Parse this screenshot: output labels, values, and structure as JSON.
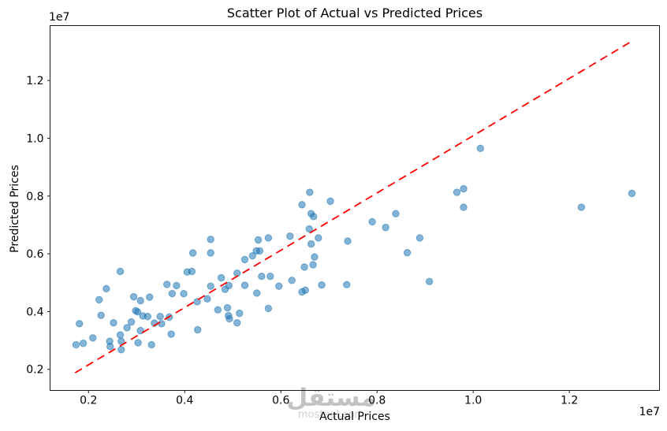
{
  "figure": {
    "title": "Scatter Plot of Actual vs Predicted Prices",
    "xlabel": "Actual Prices",
    "ylabel": "Predicted Prices",
    "x_offset_text": "1e7",
    "y_offset_text": "1e7"
  },
  "watermark": {
    "logo_text": "مستقل",
    "domain_text": "mostaql.com"
  },
  "colors": {
    "marker": "#1f77b4",
    "reference_line": "#ff0000",
    "spine": "#1a1a1a",
    "tick_label": "#000000",
    "watermark": "#c3c3c3"
  },
  "chart_data": {
    "type": "scatter",
    "title": "Scatter Plot of Actual vs Predicted Prices",
    "xlabel": "Actual Prices",
    "ylabel": "Predicted Prices",
    "axis_scale_factor": "1e7",
    "grid": false,
    "xlim": [
      1200000,
      13875000
    ],
    "ylim": [
      1270000,
      13900000
    ],
    "x_ticks": [
      2000000,
      4000000,
      6000000,
      8000000,
      10000000,
      12000000
    ],
    "x_tick_labels": [
      "0.2",
      "0.4",
      "0.6",
      "0.8",
      "1.0",
      "1.2"
    ],
    "y_ticks": [
      2000000,
      4000000,
      6000000,
      8000000,
      10000000,
      12000000
    ],
    "y_tick_labels": [
      "0.2",
      "0.4",
      "0.6",
      "0.8",
      "1.0",
      "1.2"
    ],
    "reference_line": {
      "style": "dashed",
      "color": "#ff0000",
      "x": [
        1720000,
        13300000
      ],
      "y": [
        1880000,
        13360000
      ]
    },
    "series": [
      {
        "name": "actual-vs-predicted",
        "marker": "circle",
        "color": "#1f77b4",
        "alpha": 0.55,
        "points": [
          [
            2660000,
            5390000
          ],
          [
            4050000,
            5370000
          ],
          [
            4150000,
            5390000
          ],
          [
            4170000,
            6030000
          ],
          [
            2370000,
            4790000
          ],
          [
            3630000,
            4940000
          ],
          [
            3830000,
            4900000
          ],
          [
            3740000,
            4620000
          ],
          [
            3980000,
            4620000
          ],
          [
            2220000,
            4410000
          ],
          [
            2940000,
            4510000
          ],
          [
            3080000,
            4380000
          ],
          [
            3270000,
            4500000
          ],
          [
            4260000,
            4340000
          ],
          [
            2260000,
            3870000
          ],
          [
            2980000,
            4030000
          ],
          [
            3020000,
            3990000
          ],
          [
            3130000,
            3850000
          ],
          [
            3230000,
            3830000
          ],
          [
            3370000,
            3600000
          ],
          [
            3490000,
            3830000
          ],
          [
            3520000,
            3580000
          ],
          [
            3680000,
            3810000
          ],
          [
            3720000,
            3220000
          ],
          [
            1810000,
            3580000
          ],
          [
            2520000,
            3610000
          ],
          [
            2800000,
            3440000
          ],
          [
            2890000,
            3640000
          ],
          [
            2090000,
            3090000
          ],
          [
            1890000,
            2900000
          ],
          [
            1740000,
            2850000
          ],
          [
            2440000,
            2970000
          ],
          [
            2450000,
            2790000
          ],
          [
            2660000,
            3190000
          ],
          [
            2680000,
            2970000
          ],
          [
            2680000,
            2680000
          ],
          [
            3030000,
            2920000
          ],
          [
            3310000,
            2850000
          ],
          [
            3080000,
            3340000
          ],
          [
            4270000,
            3370000
          ],
          [
            5250000,
            5800000
          ],
          [
            6490000,
            5540000
          ],
          [
            6670000,
            5620000
          ],
          [
            4760000,
            5170000
          ],
          [
            5090000,
            5330000
          ],
          [
            5600000,
            5220000
          ],
          [
            5780000,
            5220000
          ],
          [
            6230000,
            5080000
          ],
          [
            4540000,
            4880000
          ],
          [
            4840000,
            4770000
          ],
          [
            4920000,
            4900000
          ],
          [
            5250000,
            4910000
          ],
          [
            5960000,
            4880000
          ],
          [
            6440000,
            4680000
          ],
          [
            6510000,
            4740000
          ],
          [
            6850000,
            4920000
          ],
          [
            7370000,
            4930000
          ],
          [
            5500000,
            4640000
          ],
          [
            4470000,
            4440000
          ],
          [
            4690000,
            4060000
          ],
          [
            4890000,
            4130000
          ],
          [
            5740000,
            4110000
          ],
          [
            4910000,
            3860000
          ],
          [
            4930000,
            3750000
          ],
          [
            5140000,
            3940000
          ],
          [
            5090000,
            3610000
          ],
          [
            6600000,
            8130000
          ],
          [
            6440000,
            7700000
          ],
          [
            7030000,
            7820000
          ],
          [
            6630000,
            7390000
          ],
          [
            6680000,
            7290000
          ],
          [
            6590000,
            6860000
          ],
          [
            4540000,
            6500000
          ],
          [
            5530000,
            6480000
          ],
          [
            5740000,
            6550000
          ],
          [
            6190000,
            6610000
          ],
          [
            6780000,
            6550000
          ],
          [
            7390000,
            6440000
          ],
          [
            6630000,
            6340000
          ],
          [
            4540000,
            6030000
          ],
          [
            5490000,
            6100000
          ],
          [
            5560000,
            6100000
          ],
          [
            5410000,
            5930000
          ],
          [
            6700000,
            5890000
          ],
          [
            9660000,
            8130000
          ],
          [
            9800000,
            8250000
          ],
          [
            9800000,
            7610000
          ],
          [
            7900000,
            7110000
          ],
          [
            8180000,
            6910000
          ],
          [
            8390000,
            7390000
          ],
          [
            8890000,
            6550000
          ],
          [
            8630000,
            6040000
          ],
          [
            9090000,
            5040000
          ],
          [
            10150000,
            9650000
          ],
          [
            12250000,
            7610000
          ],
          [
            13300000,
            8090000
          ]
        ]
      }
    ]
  }
}
